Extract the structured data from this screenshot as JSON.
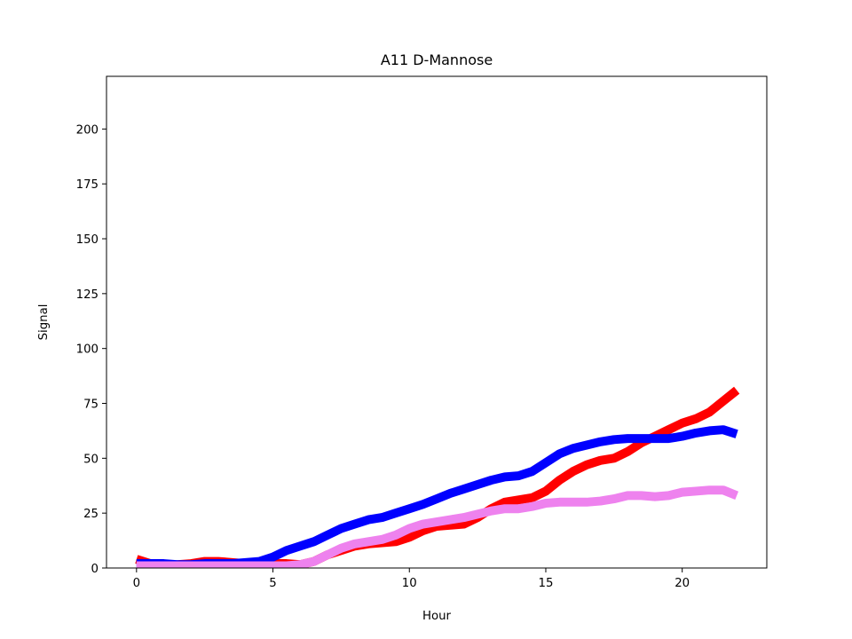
{
  "chart_data": {
    "type": "line",
    "title": "A11 D-Mannose",
    "xlabel": "Hour",
    "ylabel": "Signal",
    "xlim": [
      -1.1,
      23.1
    ],
    "ylim": [
      0,
      224
    ],
    "xticks": [
      0,
      5,
      10,
      15,
      20
    ],
    "yticks": [
      0,
      25,
      50,
      75,
      100,
      125,
      150,
      175,
      200
    ],
    "grid": false,
    "legend": "none",
    "series": [
      {
        "color": "#ff0000",
        "x": [
          0,
          0.5,
          1,
          1.5,
          2,
          2.5,
          3,
          3.5,
          4,
          4.5,
          5,
          5.5,
          6,
          6.5,
          7,
          7.5,
          8,
          8.5,
          9,
          9.5,
          10,
          10.5,
          11,
          11.5,
          12,
          12.5,
          13,
          13.5,
          14,
          14.5,
          15,
          15.5,
          16,
          16.5,
          17,
          17.5,
          18,
          18.5,
          19,
          19.5,
          20,
          20.5,
          21,
          21.5,
          22
        ],
        "y": [
          4,
          2,
          1,
          1.5,
          2,
          3,
          3,
          2.5,
          2,
          2.5,
          2,
          2,
          1.5,
          3,
          6,
          8,
          10,
          11,
          11.5,
          12,
          14,
          17,
          19,
          19.5,
          20,
          23,
          27,
          30,
          31,
          32,
          35,
          40,
          44,
          47,
          49,
          50,
          53,
          57,
          60,
          63,
          66,
          68,
          71,
          76,
          81
        ]
      },
      {
        "color": "#0000ff",
        "x": [
          0,
          0.5,
          1,
          1.5,
          2,
          2.5,
          3,
          3.5,
          4,
          4.5,
          5,
          5.5,
          6,
          6.5,
          7,
          7.5,
          8,
          8.5,
          9,
          9.5,
          10,
          10.5,
          11,
          11.5,
          12,
          12.5,
          13,
          13.5,
          14,
          14.5,
          15,
          15.5,
          16,
          16.5,
          17,
          17.5,
          18,
          18.5,
          19,
          19.5,
          20,
          20.5,
          21,
          21.5,
          22
        ],
        "y": [
          2,
          2,
          2,
          1.5,
          1.5,
          2,
          2,
          2,
          2.5,
          3,
          5,
          8,
          10,
          12,
          15,
          18,
          20,
          22,
          23,
          25,
          27,
          29,
          31.5,
          34,
          36,
          38,
          40,
          41.5,
          42,
          44,
          48,
          52,
          54.5,
          56,
          57.5,
          58.5,
          59,
          59,
          59,
          59,
          60,
          61.5,
          62.5,
          63,
          61
        ]
      },
      {
        "color": "#ee82ee",
        "x": [
          0,
          0.5,
          1,
          1.5,
          2,
          2.5,
          3,
          3.5,
          4,
          4.5,
          5,
          5.5,
          6,
          6.5,
          7,
          7.5,
          8,
          8.5,
          9,
          9.5,
          10,
          10.5,
          11,
          11.5,
          12,
          12.5,
          13,
          13.5,
          14,
          14.5,
          15,
          15.5,
          16,
          16.5,
          17,
          17.5,
          18,
          18.5,
          19,
          19.5,
          20,
          20.5,
          21,
          21.5,
          22
        ],
        "y": [
          1,
          1,
          1,
          1,
          1,
          1,
          1,
          1,
          1,
          1,
          1,
          1,
          1.5,
          3,
          6,
          9,
          11,
          12,
          13,
          15,
          18,
          20,
          21,
          22,
          23,
          24.5,
          26,
          27,
          27,
          28,
          29.5,
          30,
          30,
          30,
          30.5,
          31.5,
          33,
          33,
          32.5,
          33,
          34.5,
          35,
          35.5,
          35.5,
          33
        ]
      }
    ]
  }
}
